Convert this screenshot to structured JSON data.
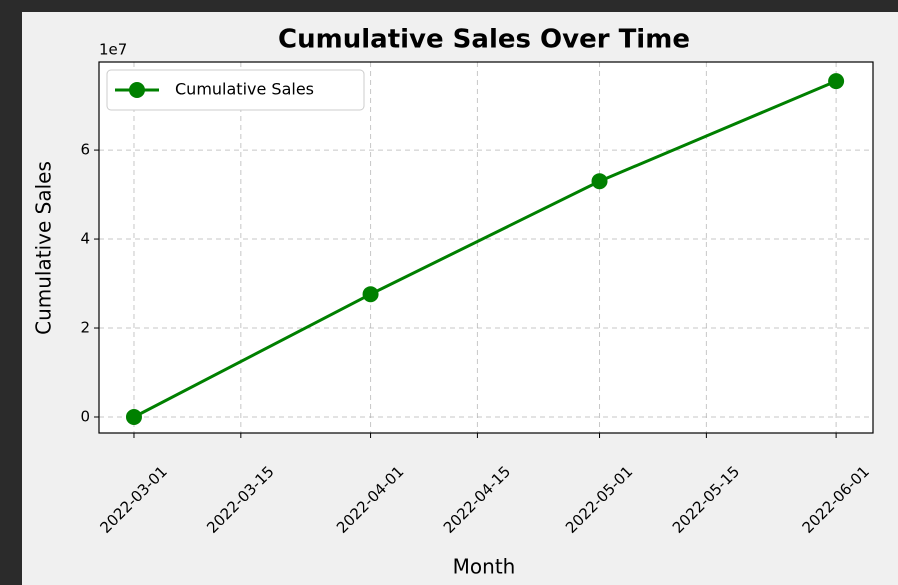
{
  "chart_data": {
    "type": "line",
    "title": "Cumulative Sales Over Time",
    "x_label": "Month",
    "y_label": "Cumulative Sales",
    "y_offset_label": "1e7",
    "x": [
      "2022-03-01",
      "2022-04-01",
      "2022-05-01",
      "2022-06-01"
    ],
    "series": [
      {
        "name": "Cumulative Sales",
        "color": "#008000",
        "values": [
          0,
          27600000,
          53000000,
          75500000
        ]
      }
    ],
    "xlim": [
      "2022-02-24T10:00:00Z",
      "2022-06-05T20:00:00Z"
    ],
    "xticks": [
      "2022-03-01",
      "2022-03-15",
      "2022-04-01",
      "2022-04-15",
      "2022-05-01",
      "2022-05-15",
      "2022-06-01"
    ],
    "ylim": [
      -3600000,
      79800000
    ],
    "yticks": [
      {
        "value": 0,
        "label": "0"
      },
      {
        "value": 20000000,
        "label": "2"
      },
      {
        "value": 40000000,
        "label": "4"
      },
      {
        "value": 60000000,
        "label": "6"
      }
    ],
    "grid": true,
    "legend": "upper left"
  }
}
